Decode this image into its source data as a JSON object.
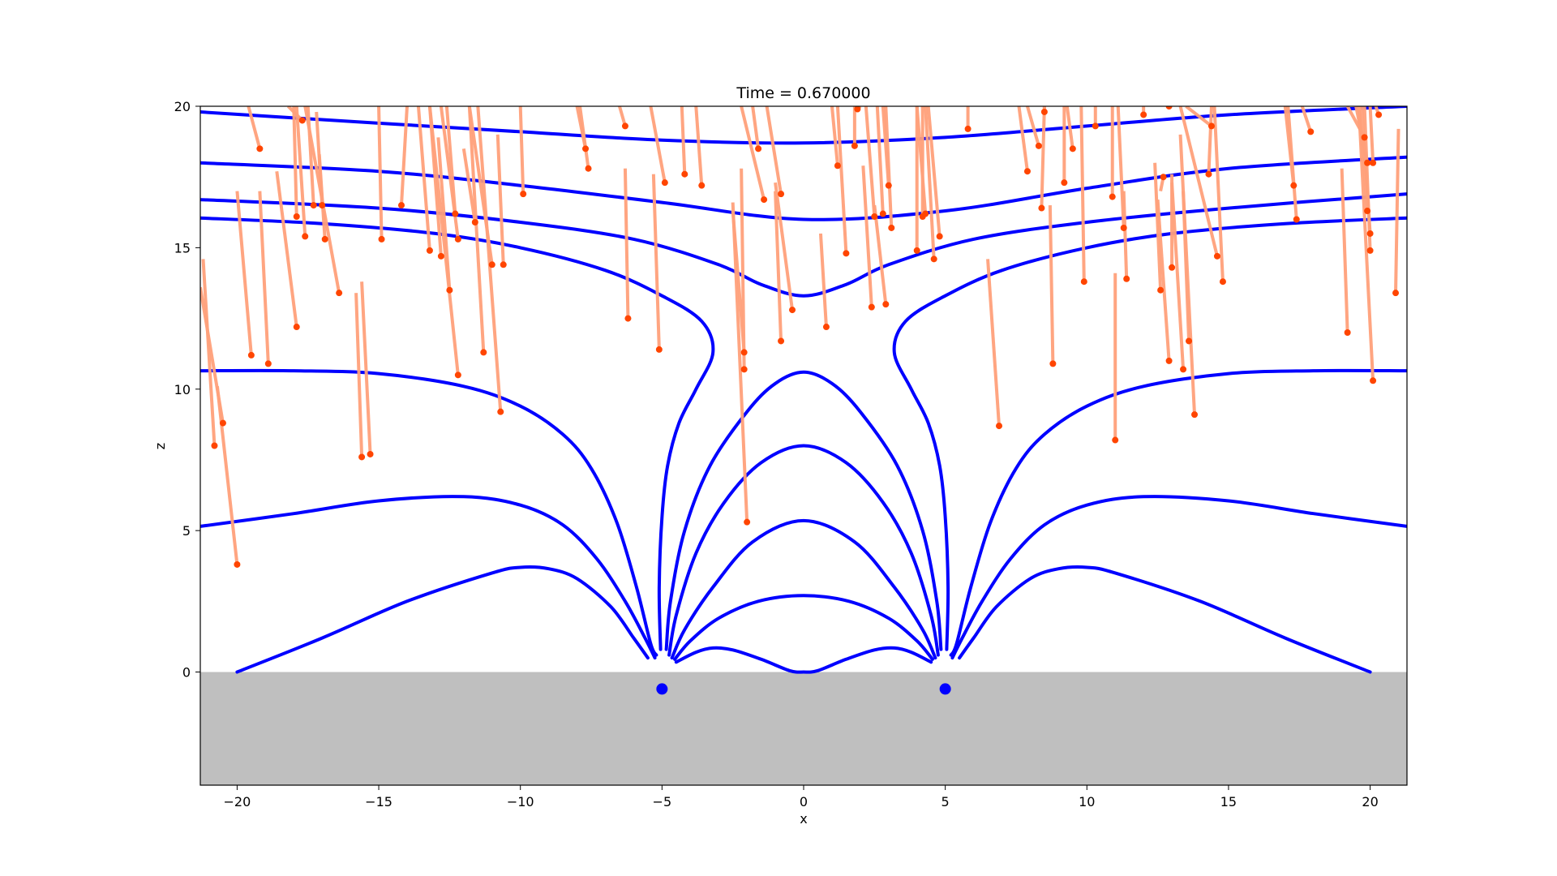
{
  "chart_data": {
    "type": "line",
    "title": "Time = 0.670000",
    "xlabel": "x",
    "ylabel": "z",
    "xlim": [
      -21.3,
      21.3
    ],
    "ylim": [
      -4,
      20
    ],
    "x_ticks": [
      -20,
      -15,
      -10,
      -5,
      0,
      5,
      10,
      15,
      20
    ],
    "x_tick_labels": [
      "−20",
      "−15",
      "−10",
      "−5",
      "0",
      "5",
      "10",
      "15",
      "20"
    ],
    "y_ticks": [
      0,
      5,
      10,
      15,
      20
    ],
    "y_tick_labels": [
      "0",
      "5",
      "10",
      "15",
      "20"
    ],
    "grid": false,
    "ground": {
      "z_top": 0,
      "z_bottom": -4,
      "color": "#bfbfbf"
    },
    "colors": {
      "field_line": "#0000ff",
      "trail": "#ffa07a",
      "particle": "#ff4500",
      "source": "#0000ff"
    },
    "sources": [
      {
        "x": -5,
        "z": -0.6
      },
      {
        "x": 5,
        "z": -0.6
      }
    ],
    "field_lines": [
      {
        "points": [
          [
            -21.3,
            19.8
          ],
          [
            -15,
            19.4
          ],
          [
            -10,
            19.1
          ],
          [
            -5,
            18.8
          ],
          [
            0,
            18.7
          ],
          [
            5,
            18.9
          ],
          [
            10,
            19.3
          ],
          [
            15,
            19.7
          ],
          [
            21.3,
            20.0
          ]
        ]
      },
      {
        "points": [
          [
            -21.3,
            18.0
          ],
          [
            -15,
            17.7
          ],
          [
            -10,
            17.2
          ],
          [
            -5,
            16.6
          ],
          [
            0,
            16.0
          ],
          [
            5,
            16.3
          ],
          [
            10,
            17.1
          ],
          [
            15,
            17.8
          ],
          [
            21.3,
            18.2
          ]
        ]
      },
      {
        "points": [
          [
            -21.3,
            16.7
          ],
          [
            -15,
            16.4
          ],
          [
            -10,
            15.9
          ],
          [
            -6,
            15.3
          ],
          [
            -3,
            14.4
          ],
          [
            -1.5,
            13.7
          ],
          [
            0,
            13.3
          ],
          [
            1.5,
            13.7
          ],
          [
            3,
            14.4
          ],
          [
            6,
            15.3
          ],
          [
            10,
            15.9
          ],
          [
            15,
            16.4
          ],
          [
            21.3,
            16.9
          ]
        ]
      },
      {
        "points": [
          [
            -21.3,
            16.05
          ],
          [
            -17,
            15.85
          ],
          [
            -13,
            15.5
          ],
          [
            -10,
            15.0
          ],
          [
            -7,
            14.2
          ],
          [
            -5,
            13.3
          ],
          [
            -3.6,
            12.4
          ],
          [
            -3.2,
            11.3
          ],
          [
            -3.8,
            10.0
          ],
          [
            -4.4,
            8.8
          ],
          [
            -4.8,
            7.3
          ],
          [
            -5.0,
            5.5
          ],
          [
            -5.1,
            3.0
          ],
          [
            -5.05,
            0.8
          ]
        ]
      },
      {
        "points": [
          [
            21.3,
            16.05
          ],
          [
            17,
            15.85
          ],
          [
            13,
            15.5
          ],
          [
            10,
            15.0
          ],
          [
            7,
            14.2
          ],
          [
            5,
            13.3
          ],
          [
            3.6,
            12.4
          ],
          [
            3.2,
            11.3
          ],
          [
            3.8,
            10.0
          ],
          [
            4.4,
            8.8
          ],
          [
            4.8,
            7.3
          ],
          [
            5.0,
            5.5
          ],
          [
            5.1,
            3.0
          ],
          [
            5.05,
            0.8
          ]
        ]
      },
      {
        "points": [
          [
            -21.3,
            10.65
          ],
          [
            -18,
            10.65
          ],
          [
            -15,
            10.55
          ],
          [
            -12,
            10.1
          ],
          [
            -10,
            9.4
          ],
          [
            -8.5,
            8.4
          ],
          [
            -7.5,
            7.2
          ],
          [
            -6.6,
            5.3
          ],
          [
            -5.9,
            3.0
          ],
          [
            -5.4,
            1.0
          ],
          [
            -5.2,
            0.6
          ]
        ]
      },
      {
        "points": [
          [
            21.3,
            10.65
          ],
          [
            18,
            10.65
          ],
          [
            15,
            10.55
          ],
          [
            12,
            10.1
          ],
          [
            10,
            9.4
          ],
          [
            8.5,
            8.4
          ],
          [
            7.5,
            7.2
          ],
          [
            6.6,
            5.3
          ],
          [
            5.9,
            3.0
          ],
          [
            5.4,
            1.0
          ],
          [
            5.2,
            0.6
          ]
        ]
      },
      {
        "points": [
          [
            -21.3,
            5.15
          ],
          [
            -18,
            5.6
          ],
          [
            -15,
            6.05
          ],
          [
            -12,
            6.2
          ],
          [
            -10,
            5.9
          ],
          [
            -8.5,
            5.2
          ],
          [
            -7.3,
            4.0
          ],
          [
            -6.3,
            2.5
          ],
          [
            -5.6,
            1.2
          ],
          [
            -5.25,
            0.5
          ]
        ]
      },
      {
        "points": [
          [
            21.3,
            5.15
          ],
          [
            18,
            5.6
          ],
          [
            15,
            6.05
          ],
          [
            12,
            6.2
          ],
          [
            10,
            5.9
          ],
          [
            8.5,
            5.2
          ],
          [
            7.3,
            4.0
          ],
          [
            6.3,
            2.5
          ],
          [
            5.6,
            1.2
          ],
          [
            5.25,
            0.5
          ]
        ]
      },
      {
        "points": [
          [
            -20,
            0.0
          ],
          [
            -17,
            1.2
          ],
          [
            -14,
            2.5
          ],
          [
            -11,
            3.5
          ],
          [
            -10,
            3.7
          ],
          [
            -9,
            3.65
          ],
          [
            -8,
            3.3
          ],
          [
            -6.8,
            2.3
          ],
          [
            -6,
            1.2
          ],
          [
            -5.5,
            0.5
          ]
        ]
      },
      {
        "points": [
          [
            20,
            0.0
          ],
          [
            17,
            1.2
          ],
          [
            14,
            2.5
          ],
          [
            11,
            3.5
          ],
          [
            10,
            3.7
          ],
          [
            9,
            3.65
          ],
          [
            8,
            3.3
          ],
          [
            6.8,
            2.3
          ],
          [
            6,
            1.2
          ],
          [
            5.5,
            0.5
          ]
        ]
      },
      {
        "points": [
          [
            -4.85,
            0.8
          ],
          [
            -4.7,
            2.5
          ],
          [
            -4.2,
            5.0
          ],
          [
            -3.3,
            7.3
          ],
          [
            -2.0,
            9.2
          ],
          [
            -1.0,
            10.2
          ],
          [
            0,
            10.6
          ],
          [
            1.0,
            10.2
          ],
          [
            2.0,
            9.2
          ],
          [
            3.3,
            7.3
          ],
          [
            4.2,
            5.0
          ],
          [
            4.7,
            2.5
          ],
          [
            4.85,
            0.8
          ]
        ]
      },
      {
        "points": [
          [
            -4.75,
            0.6
          ],
          [
            -4.5,
            2.0
          ],
          [
            -3.8,
            4.2
          ],
          [
            -2.8,
            6.0
          ],
          [
            -1.5,
            7.4
          ],
          [
            0,
            8.0
          ],
          [
            1.5,
            7.4
          ],
          [
            2.8,
            6.0
          ],
          [
            3.8,
            4.2
          ],
          [
            4.5,
            2.0
          ],
          [
            4.75,
            0.6
          ]
        ]
      },
      {
        "points": [
          [
            -4.65,
            0.5
          ],
          [
            -4.2,
            1.5
          ],
          [
            -3.2,
            3.0
          ],
          [
            -1.8,
            4.6
          ],
          [
            0,
            5.35
          ],
          [
            1.8,
            4.6
          ],
          [
            3.2,
            3.0
          ],
          [
            4.2,
            1.5
          ],
          [
            4.65,
            0.5
          ]
        ]
      },
      {
        "points": [
          [
            -4.55,
            0.45
          ],
          [
            -4.0,
            1.1
          ],
          [
            -3.0,
            1.9
          ],
          [
            -1.6,
            2.5
          ],
          [
            0,
            2.7
          ],
          [
            1.6,
            2.5
          ],
          [
            3.0,
            1.9
          ],
          [
            4.0,
            1.1
          ],
          [
            4.55,
            0.45
          ]
        ]
      },
      {
        "points": [
          [
            -4.5,
            0.35
          ],
          [
            -3.8,
            0.7
          ],
          [
            -3.2,
            0.85
          ],
          [
            -2.5,
            0.78
          ],
          [
            -1.5,
            0.45
          ],
          [
            -0.5,
            0.05
          ],
          [
            0,
            0.0
          ],
          [
            0.5,
            0.05
          ],
          [
            1.5,
            0.45
          ],
          [
            2.5,
            0.78
          ],
          [
            3.2,
            0.85
          ],
          [
            3.8,
            0.7
          ],
          [
            4.5,
            0.35
          ]
        ]
      }
    ],
    "particles": [
      [
        -21.2,
        14.6,
        -20.8,
        8.0
      ],
      [
        -21.3,
        13.6,
        -20.5,
        8.8
      ],
      [
        -20.7,
        10.1,
        -20.0,
        3.8
      ],
      [
        -20.0,
        17.0,
        -19.5,
        11.2
      ],
      [
        -19.6,
        20.0,
        -19.2,
        18.5
      ],
      [
        -19.2,
        17.0,
        -18.9,
        10.9
      ],
      [
        -18.6,
        17.7,
        -17.9,
        12.2
      ],
      [
        -18.0,
        20.0,
        -17.9,
        16.1
      ],
      [
        -18.2,
        20.0,
        -17.7,
        19.5
      ],
      [
        -17.9,
        20.0,
        -17.6,
        15.4
      ],
      [
        -17.5,
        20.0,
        -17.3,
        16.5
      ],
      [
        -17.2,
        19.8,
        -17.0,
        16.5
      ],
      [
        -17.1,
        18.3,
        -16.9,
        15.3
      ],
      [
        -17.6,
        20.0,
        -16.4,
        13.4
      ],
      [
        -15.8,
        13.4,
        -15.6,
        7.6
      ],
      [
        -15.6,
        13.8,
        -15.3,
        7.7
      ],
      [
        -15.0,
        20.0,
        -14.9,
        15.3
      ],
      [
        -14.0,
        20.0,
        -14.2,
        16.5
      ],
      [
        -13.6,
        20.0,
        -13.2,
        14.9
      ],
      [
        -13.2,
        20.0,
        -12.8,
        14.7
      ],
      [
        -12.9,
        18.9,
        -12.5,
        13.5
      ],
      [
        -12.6,
        20.0,
        -12.3,
        16.2
      ],
      [
        -12.8,
        20.0,
        -12.2,
        15.3
      ],
      [
        -13.2,
        20.0,
        -12.2,
        10.5
      ],
      [
        -12.0,
        18.5,
        -11.6,
        15.9
      ],
      [
        -11.8,
        20.0,
        -11.3,
        11.3
      ],
      [
        -11.8,
        20.0,
        -11.0,
        14.4
      ],
      [
        -11.5,
        20.0,
        -10.7,
        9.2
      ],
      [
        -10.8,
        19.0,
        -10.6,
        14.4
      ],
      [
        -10.0,
        20.0,
        -9.9,
        16.9
      ],
      [
        -7.9,
        20.0,
        -7.6,
        17.8
      ],
      [
        -8.0,
        20.0,
        -7.7,
        18.5
      ],
      [
        -6.5,
        20.0,
        -6.3,
        19.3
      ],
      [
        -6.3,
        17.8,
        -6.2,
        12.5
      ],
      [
        -5.3,
        17.6,
        -5.1,
        11.4
      ],
      [
        -5.4,
        20.0,
        -4.9,
        17.3
      ],
      [
        -4.3,
        20.0,
        -4.2,
        17.6
      ],
      [
        -3.8,
        20.0,
        -3.6,
        17.2
      ],
      [
        -2.5,
        16.3,
        -2.1,
        11.3
      ],
      [
        -2.2,
        17.8,
        -2.1,
        10.7
      ],
      [
        -2.5,
        16.6,
        -2.0,
        5.3
      ],
      [
        -1.8,
        20.0,
        -1.6,
        18.5
      ],
      [
        -2.2,
        20.0,
        -1.4,
        16.7
      ],
      [
        -1.0,
        17.0,
        -0.8,
        11.7
      ],
      [
        -1.3,
        20.0,
        -0.8,
        16.9
      ],
      [
        -1.0,
        17.3,
        -0.4,
        12.8
      ],
      [
        0.6,
        15.5,
        0.8,
        12.2
      ],
      [
        1.0,
        20.0,
        1.2,
        17.9
      ],
      [
        1.2,
        20.0,
        1.5,
        14.8
      ],
      [
        1.8,
        20.0,
        1.8,
        18.6
      ],
      [
        2.0,
        20.0,
        1.9,
        19.9
      ],
      [
        2.1,
        17.9,
        2.4,
        12.9
      ],
      [
        2.2,
        20.0,
        2.5,
        16.1
      ],
      [
        2.6,
        20.0,
        2.8,
        16.2
      ],
      [
        2.5,
        16.5,
        2.9,
        13.0
      ],
      [
        2.8,
        20.0,
        3.0,
        17.2
      ],
      [
        2.9,
        20.0,
        3.1,
        15.7
      ],
      [
        4.0,
        20.0,
        4.0,
        14.9
      ],
      [
        4.2,
        20.0,
        4.2,
        16.1
      ],
      [
        4.0,
        20.0,
        4.3,
        16.2
      ],
      [
        4.3,
        20.0,
        4.6,
        14.6
      ],
      [
        4.4,
        20.0,
        4.8,
        15.4
      ],
      [
        5.8,
        20.0,
        5.8,
        19.2
      ],
      [
        6.5,
        14.6,
        6.9,
        8.7
      ],
      [
        7.6,
        20.0,
        7.9,
        17.7
      ],
      [
        7.9,
        20.0,
        8.3,
        18.6
      ],
      [
        8.5,
        20.0,
        8.4,
        16.4
      ],
      [
        8.5,
        20.0,
        8.5,
        19.8
      ],
      [
        8.7,
        16.5,
        8.8,
        10.9
      ],
      [
        9.2,
        20.0,
        9.2,
        17.3
      ],
      [
        9.3,
        20.0,
        9.5,
        18.5
      ],
      [
        9.8,
        20.0,
        9.9,
        13.8
      ],
      [
        10.3,
        20.0,
        10.3,
        19.3
      ],
      [
        10.9,
        20.0,
        10.9,
        16.8
      ],
      [
        11.0,
        14.1,
        11.0,
        8.2
      ],
      [
        11.1,
        20.0,
        11.3,
        15.7
      ],
      [
        11.3,
        17.0,
        11.4,
        13.9
      ],
      [
        12.0,
        20.0,
        12.0,
        19.7
      ],
      [
        12.4,
        18.0,
        12.6,
        13.5
      ],
      [
        12.6,
        17.0,
        12.7,
        17.5
      ],
      [
        12.8,
        20.0,
        12.9,
        20.0
      ],
      [
        12.5,
        16.7,
        12.9,
        11.0
      ],
      [
        13.0,
        17.6,
        13.0,
        14.3
      ],
      [
        13.0,
        17.3,
        13.4,
        10.7
      ],
      [
        13.4,
        17.0,
        13.6,
        11.7
      ],
      [
        13.3,
        19.0,
        13.8,
        9.1
      ],
      [
        13.5,
        20.0,
        14.4,
        19.3
      ],
      [
        14.4,
        20.0,
        14.3,
        17.6
      ],
      [
        13.3,
        20.0,
        14.6,
        14.7
      ],
      [
        14.5,
        20.0,
        14.8,
        13.8
      ],
      [
        17.0,
        20.0,
        17.3,
        17.2
      ],
      [
        17.1,
        20.0,
        17.4,
        16.0
      ],
      [
        17.6,
        20.0,
        17.9,
        19.1
      ],
      [
        19.0,
        17.8,
        19.2,
        12.0
      ],
      [
        19.2,
        20.0,
        19.8,
        18.9
      ],
      [
        19.5,
        20.0,
        19.9,
        18.0
      ],
      [
        19.6,
        20.0,
        19.9,
        16.3
      ],
      [
        19.7,
        20.0,
        20.0,
        15.5
      ],
      [
        19.8,
        20.0,
        20.0,
        14.9
      ],
      [
        19.6,
        20.0,
        20.1,
        10.3
      ],
      [
        20.0,
        20.0,
        20.1,
        18.0
      ],
      [
        20.2,
        20.0,
        20.3,
        19.7
      ],
      [
        21.0,
        19.2,
        20.9,
        13.4
      ]
    ]
  }
}
